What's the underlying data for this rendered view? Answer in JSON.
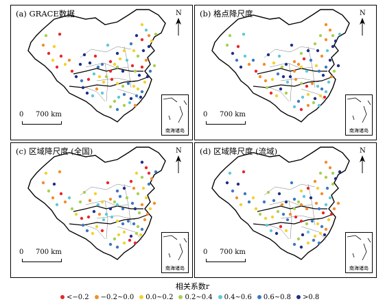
{
  "panels": [
    {
      "title": "(a) GRACE数据",
      "inset_label": "南海诸岛",
      "north_label": "N",
      "scale": {
        "zero": "0",
        "length": "700 km"
      }
    },
    {
      "title": "(b) 格点降尺度",
      "inset_label": "南海诸岛",
      "north_label": "N",
      "scale": {
        "zero": "0",
        "length": "700 km"
      }
    },
    {
      "title": "(c) 区域降尺度 (全国)",
      "inset_label": "南海诸岛",
      "north_label": "N",
      "scale": {
        "zero": "0",
        "length": "700 km"
      }
    },
    {
      "title": "(d) 区域降尺度 (流域)",
      "inset_label": "南海诸岛",
      "north_label": "N",
      "scale": {
        "zero": "0",
        "length": "700 km"
      }
    }
  ],
  "legend": {
    "title": "相关系数r",
    "items": [
      {
        "label": "<−0.2",
        "color": "#e8272a"
      },
      {
        "label": "−0.2~0.0",
        "color": "#f28e2b"
      },
      {
        "label": "0.0~0.2",
        "color": "#f2d22e"
      },
      {
        "label": "0.2~0.4",
        "color": "#a7d14f"
      },
      {
        "label": "0.4~0.6",
        "color": "#5fc7d6"
      },
      {
        "label": "0.6~0.8",
        "color": "#3b78c2"
      },
      {
        "label": ">0.8",
        "color": "#1f2f86"
      }
    ]
  }
}
